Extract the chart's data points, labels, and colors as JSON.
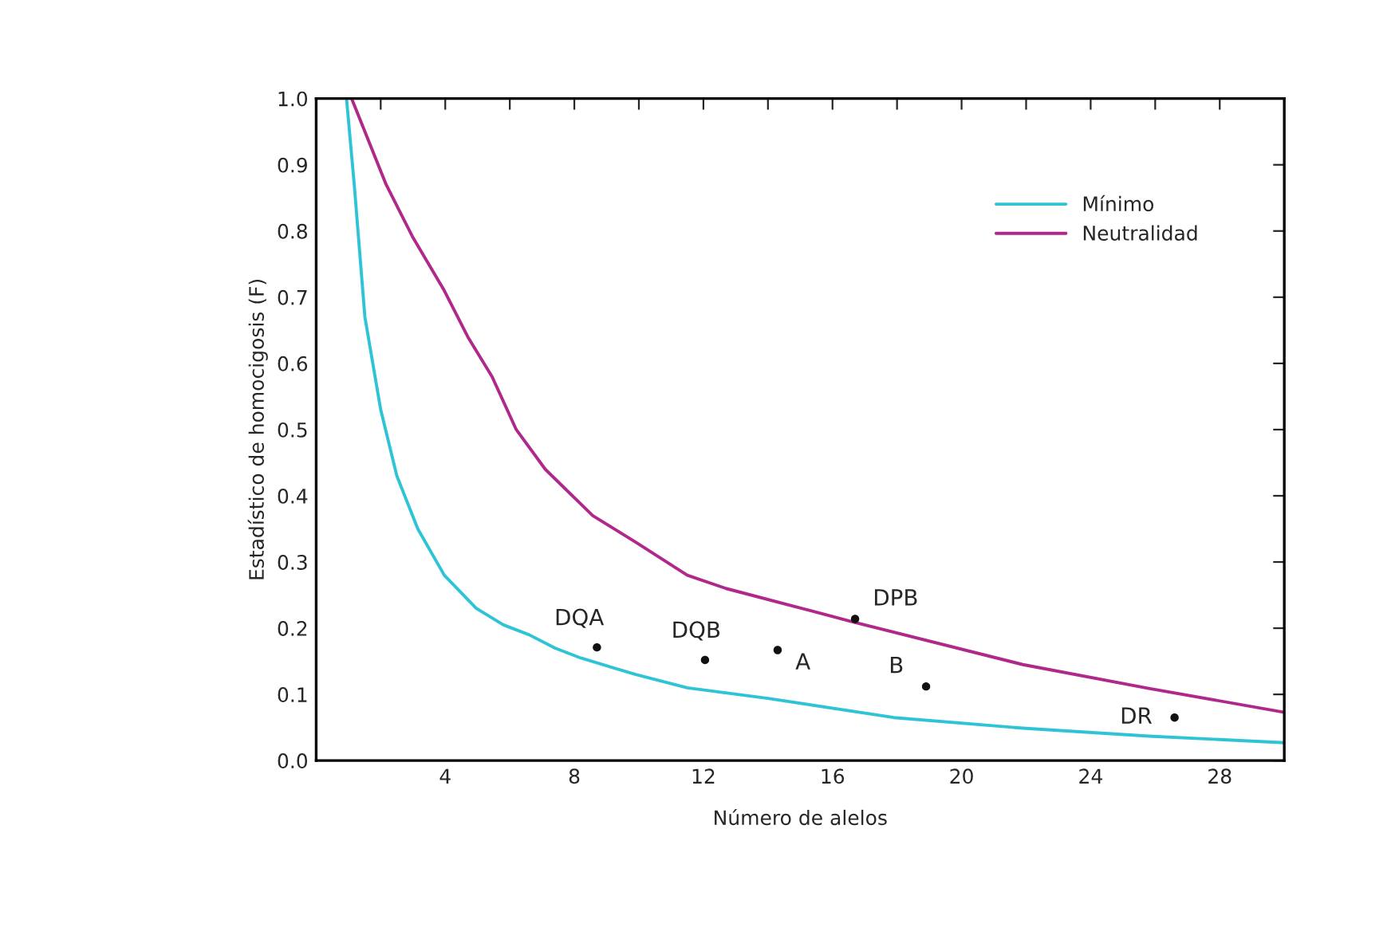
{
  "chart_data": {
    "type": "line",
    "xlabel": "Número de alelos",
    "ylabel": "Estadístico de homocigosis (F)",
    "xlim": [
      0,
      30
    ],
    "ylim": [
      0,
      1
    ],
    "xticks": [
      {
        "value": 2,
        "label": null
      },
      4,
      {
        "value": 6,
        "label": null
      },
      8,
      {
        "value": 10,
        "label": null
      },
      12,
      {
        "value": 14,
        "label": null
      },
      16,
      {
        "value": 18,
        "label": null
      },
      20,
      {
        "value": 22,
        "label": null
      },
      24,
      {
        "value": 26,
        "label": null
      },
      28
    ],
    "yticks": [
      {
        "value": 0,
        "label": "0.0"
      },
      0.1,
      0.2,
      0.3,
      0.4,
      0.5,
      0.6,
      0.7,
      0.8,
      0.9,
      {
        "value": 1,
        "label": "1.0"
      }
    ],
    "legend": "top right",
    "grid": false,
    "series": [
      {
        "name": "Mínimo",
        "color": "#2ec4d6",
        "x": [
          0.94,
          1.18,
          1.51,
          2.0,
          2.5,
          3.15,
          3.97,
          4.96,
          5.8,
          6.6,
          7.4,
          8.2,
          9.9,
          11.5,
          14,
          17.9,
          21.9,
          25.8,
          30
        ],
        "values": [
          1.0,
          0.87,
          0.67,
          0.53,
          0.43,
          0.35,
          0.28,
          0.23,
          0.205,
          0.19,
          0.17,
          0.155,
          0.13,
          0.11,
          0.094,
          0.065,
          0.049,
          0.037,
          0.027
        ]
      },
      {
        "name": "Neutralidad",
        "color": "#b0288a",
        "x": [
          1.1,
          2.17,
          3.0,
          3.97,
          4.7,
          5.45,
          6.2,
          7.1,
          8.57,
          9.9,
          11.5,
          12.7,
          16.6,
          21.9,
          25.8,
          30
        ],
        "values": [
          1.0,
          0.87,
          0.79,
          0.71,
          0.64,
          0.58,
          0.5,
          0.44,
          0.37,
          0.33,
          0.28,
          0.26,
          0.21,
          0.145,
          0.109,
          0.073
        ]
      },
      {
        "type": "scatter",
        "color": "#111111",
        "marker": "circle",
        "x": [
          8.7,
          12.05,
          14.3,
          16.7,
          18.9,
          26.6
        ],
        "values": [
          0.171,
          0.152,
          0.167,
          0.214,
          0.112,
          0.065
        ]
      }
    ],
    "annotations": [
      {
        "text": "DQA",
        "x": 8.7,
        "y": 0.171
      },
      {
        "text": "DQB",
        "x": 12.05,
        "y": 0.152
      },
      {
        "text": "A",
        "x": 14.3,
        "y": 0.167
      },
      {
        "text": "DPB",
        "x": 16.7,
        "y": 0.214
      },
      {
        "text": "B",
        "x": 18.9,
        "y": 0.112
      },
      {
        "text": "DR",
        "x": 26.6,
        "y": 0.065
      }
    ]
  }
}
